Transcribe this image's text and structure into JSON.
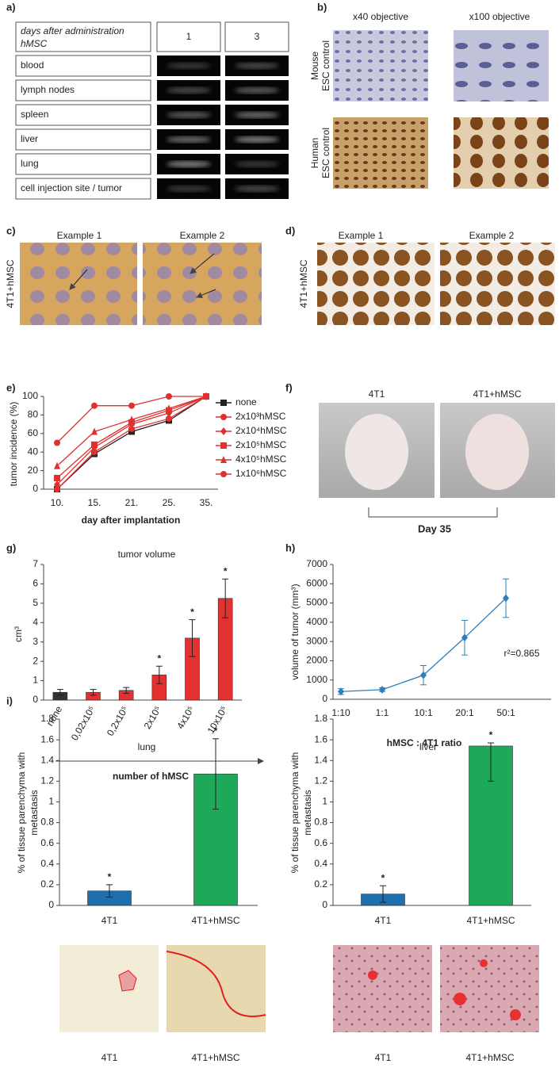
{
  "panels": {
    "a": {
      "label": "a)",
      "header": [
        "days after administration",
        "hMSC"
      ],
      "columns": [
        "1",
        "3"
      ],
      "rows": [
        "blood",
        "lymph nodes",
        "spleen",
        "liver",
        "lung",
        "cell injection site / tumor"
      ]
    },
    "b": {
      "label": "b)",
      "columns": [
        "x40 objective",
        "x100 objective"
      ],
      "rows": [
        [
          "Mouse",
          "ESC control"
        ],
        [
          "Human",
          "ESC control"
        ]
      ]
    },
    "c": {
      "label": "c)",
      "columns": [
        "Example 1",
        "Example 2"
      ],
      "row": "4T1+hMSC"
    },
    "d": {
      "label": "d)",
      "columns": [
        "Example 1",
        "Example 2"
      ],
      "row": "4T1+hMSC"
    },
    "f": {
      "label": "f)",
      "columns": [
        "4T1",
        "4T1+hMSC"
      ],
      "caption": "Day 35"
    },
    "i_images": {
      "captions": [
        "4T1",
        "4T1+hMSC",
        "4T1",
        "4T1+hMSC"
      ]
    }
  },
  "chart_data": [
    {
      "type": "line",
      "panel": "e)",
      "y_label": "tumor incidence (%)",
      "x_label": "day after implantation",
      "categories": [
        "10.",
        "15.",
        "21.",
        "25.",
        "35."
      ],
      "ylim": [
        0,
        100
      ],
      "yticks": [
        0,
        20,
        40,
        60,
        80,
        100
      ],
      "series": [
        {
          "name": "none",
          "color": "#222222",
          "marker": "square",
          "values": [
            0,
            38,
            62,
            74,
            100
          ]
        },
        {
          "name": "2x10³hMSC",
          "color": "#e03030",
          "marker": "circle",
          "values": [
            0,
            40,
            65,
            76,
            100
          ]
        },
        {
          "name": "2x10⁴hMSC",
          "color": "#e03030",
          "marker": "diamond",
          "values": [
            5,
            45,
            70,
            82,
            100
          ]
        },
        {
          "name": "2x10⁵hMSC",
          "color": "#e03030",
          "marker": "square",
          "values": [
            12,
            48,
            72,
            85,
            100
          ]
        },
        {
          "name": "4x10⁵hMSC",
          "color": "#e03030",
          "marker": "triangle",
          "values": [
            25,
            62,
            75,
            87,
            100
          ]
        },
        {
          "name": "1x10⁶hMSC",
          "color": "#e03030",
          "marker": "circle",
          "values": [
            50,
            90,
            90,
            100,
            100
          ]
        }
      ]
    },
    {
      "type": "bar",
      "panel": "g)",
      "title": "tumor volume",
      "y_label": "cm³",
      "x_label": "number of hMSC",
      "categories": [
        "none",
        "0,02x10⁵",
        "0,2x10⁵",
        "2x10⁵",
        "4x10⁵",
        "10x10⁵"
      ],
      "values": [
        0.4,
        0.4,
        0.5,
        1.3,
        3.2,
        5.25
      ],
      "errors_low": [
        0.15,
        0.15,
        0.15,
        0.45,
        0.95,
        1.0
      ],
      "errors_high": [
        0.15,
        0.15,
        0.15,
        0.45,
        0.95,
        1.0
      ],
      "colors": [
        "#333333",
        "#e53030",
        "#e53030",
        "#e53030",
        "#e53030",
        "#e53030"
      ],
      "annotations": [
        null,
        null,
        null,
        "*",
        "*",
        "*"
      ],
      "ylim": [
        0,
        7
      ],
      "yticks": [
        0,
        1,
        2,
        3,
        4,
        5,
        6,
        7
      ]
    },
    {
      "type": "line",
      "panel": "h)",
      "y_label": "volume of tumor (mm³)",
      "x_label": "hMSC : 4T1 ratio",
      "categories": [
        "1:10",
        "1:1",
        "10:1",
        "20:1",
        "50:1"
      ],
      "values": [
        400,
        500,
        1250,
        3200,
        5250
      ],
      "errors": [
        150,
        100,
        500,
        900,
        1000
      ],
      "color": "#2e7fb8",
      "marker": "diamond",
      "annotation": "r²=0.865",
      "ylim": [
        0,
        7000
      ],
      "yticks": [
        0,
        1000,
        2000,
        3000,
        4000,
        5000,
        6000,
        7000
      ]
    },
    {
      "type": "bar",
      "panel": "i)",
      "title": "lung",
      "y_label": [
        "% of tissue parenchyma with",
        "metastasis"
      ],
      "categories": [
        "4T1",
        "4T1+hMSC"
      ],
      "values": [
        0.14,
        1.27
      ],
      "errors_low": [
        0.06,
        0.34
      ],
      "errors_high": [
        0.06,
        0.34
      ],
      "colors": [
        "#1f6fad",
        "#1ea85a"
      ],
      "annotations": [
        "*",
        "*"
      ],
      "ylim": [
        0,
        1.8
      ],
      "yticks": [
        0,
        0.2,
        0.4,
        0.6,
        0.8,
        1,
        1.2,
        1.4,
        1.6,
        1.8
      ]
    },
    {
      "type": "bar",
      "title": "liver",
      "y_label": [
        "% of tissue parenchyma with",
        "metastasis"
      ],
      "categories": [
        "4T1",
        "4T1+hMSC"
      ],
      "values": [
        0.11,
        1.54
      ],
      "errors_low": [
        0.08,
        0.34
      ],
      "errors_high": [
        0.08,
        0.03
      ],
      "colors": [
        "#1f6fad",
        "#1ea85a"
      ],
      "annotations": [
        "*",
        "*"
      ],
      "ylim": [
        0,
        1.8
      ],
      "yticks": [
        0,
        0.2,
        0.4,
        0.6,
        0.8,
        1,
        1.2,
        1.4,
        1.6,
        1.8
      ]
    }
  ]
}
